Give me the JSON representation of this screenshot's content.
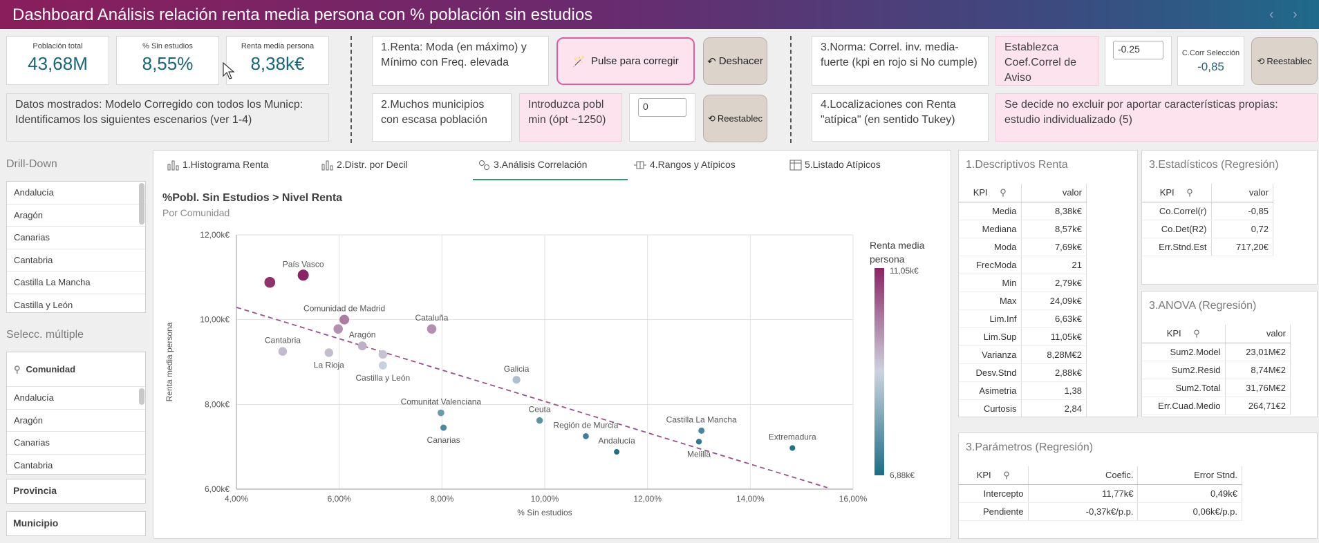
{
  "header": {
    "title": "Dashboard Análisis relación renta media persona con % población sin estudios",
    "prev": "‹",
    "next": "›"
  },
  "kpis": [
    {
      "label": "Población total",
      "value": "43,68M"
    },
    {
      "label": "% Sin estudios",
      "value": "8,55%"
    },
    {
      "label": "Renta media persona",
      "value": "8,38k€"
    }
  ],
  "info": "Datos mostrados: Modelo Corregido con  todos los Municp: Identificamos los siguientes escenarios (ver 1-4)",
  "scenario1": {
    "text": "1.Renta: Moda (en máximo) y Mínimo con Freq. elevada",
    "fix_label": "Pulse para corregir",
    "undo_label": "Deshacer"
  },
  "scenario2": {
    "text": "2.Muchos municipios con escasa población",
    "prompt": "Introduzca pobl min (ópt ~1250)",
    "value": "0",
    "reset_label": "Reestablec"
  },
  "scenario3": {
    "text": "3.Norma: Correl. inv. media-fuerte (kpi en rojo si No cumple)",
    "prompt": "Establezca Coef.Correl de Aviso",
    "value": "-0.25",
    "sel_label": "C.Corr Selección",
    "sel_value": "-0,85",
    "reset_label": "Reestablec"
  },
  "scenario4": {
    "text": "4.Localizaciones con Renta \"atípica\" (en sentido Tukey)",
    "decision": "Se decide no excluir por aportar características propias: estudio individualizado (5)"
  },
  "sidebar": {
    "drill_title": "Drill-Down",
    "drill_items": [
      "Andalucía",
      "Aragón",
      "Canarias",
      "Cantabria",
      "Castilla La Mancha",
      "Castilla y León"
    ],
    "multi_title": "Selecc. múltiple",
    "search_label": "Comunidad",
    "multi_items": [
      "Andalucía",
      "Aragón",
      "Canarias",
      "Cantabria"
    ],
    "field1": "Provincia",
    "field2": "Municipio"
  },
  "tabs": [
    "1.Histograma Renta",
    "2.Distr. por Decil",
    "3.Análisis Correlación",
    "4.Rangos y Atípicos",
    "5.Listado Atípicos"
  ],
  "chart_title": "%Pobl. Sin Estudios > Nivel Renta",
  "chart_subtitle": "Por Comunidad",
  "chart_data": {
    "type": "scatter",
    "title": "%Pobl. Sin Estudios > Nivel Renta",
    "subtitle": "Por Comunidad",
    "xlabel": "% Sin estudios",
    "ylabel": "Renta media persona",
    "xlim": [
      4,
      16
    ],
    "ylim": [
      6,
      12
    ],
    "xticks": [
      "4,00%",
      "6,00%",
      "8,00%",
      "10,00%",
      "12,00%",
      "14,00%",
      "16,00%"
    ],
    "yticks": [
      "6,00k€",
      "8,00k€",
      "10,00k€",
      "12,00k€"
    ],
    "legend_title": "Renta media persona",
    "legend_max": "11,05k€",
    "legend_min": "6,88k€",
    "color_scale": [
      "#1a6e86",
      "#cdd3e0",
      "#8b2464"
    ],
    "points": [
      {
        "label": "",
        "x": 4.65,
        "y": 10.88
      },
      {
        "label": "País Vasco",
        "x": 5.3,
        "y": 11.05
      },
      {
        "label": "Comunidad de Madrid",
        "x": 6.1,
        "y": 10.0
      },
      {
        "label": "",
        "x": 5.98,
        "y": 9.78
      },
      {
        "label": "Cataluña",
        "x": 7.8,
        "y": 9.78
      },
      {
        "label": "Aragón",
        "x": 6.45,
        "y": 9.38
      },
      {
        "label": "Cantabria",
        "x": 4.9,
        "y": 9.25
      },
      {
        "label": "La Rioja",
        "x": 5.8,
        "y": 9.22
      },
      {
        "label": "",
        "x": 6.85,
        "y": 9.18
      },
      {
        "label": "Castilla y León",
        "x": 6.85,
        "y": 8.92
      },
      {
        "label": "Galicia",
        "x": 9.45,
        "y": 8.58
      },
      {
        "label": "Comunitat Valenciana",
        "x": 7.98,
        "y": 7.8
      },
      {
        "label": "Ceuta",
        "x": 9.9,
        "y": 7.62
      },
      {
        "label": "Canarias",
        "x": 8.03,
        "y": 7.45
      },
      {
        "label": "Región de Murcia",
        "x": 10.8,
        "y": 7.25
      },
      {
        "label": "Andalucía",
        "x": 11.4,
        "y": 6.88
      },
      {
        "label": "Castilla La Mancha",
        "x": 13.05,
        "y": 7.38
      },
      {
        "label": "Melilla",
        "x": 13.0,
        "y": 7.12
      },
      {
        "label": "Extremadura",
        "x": 14.82,
        "y": 6.97
      }
    ],
    "trendline": {
      "intercept": 11.77,
      "slope": -0.37
    }
  },
  "desc_table": {
    "title": "1.Descriptivos Renta",
    "headers": [
      "KPI",
      "valor"
    ],
    "rows": [
      [
        "Media",
        "8,38k€"
      ],
      [
        "Mediana",
        "8,57k€"
      ],
      [
        "Moda",
        "7,69k€"
      ],
      [
        "FrecModa",
        "21"
      ],
      [
        "Min",
        "2,79k€"
      ],
      [
        "Max",
        "24,09k€"
      ],
      [
        "Lim.Inf",
        "6,63k€"
      ],
      [
        "Lim.Sup",
        "11,05k€"
      ],
      [
        "Varianza",
        "8,28M€2"
      ],
      [
        "Desv.Stnd",
        "2,88k€"
      ],
      [
        "Asimetria",
        "1,38"
      ],
      [
        "Curtosis",
        "2,84"
      ]
    ]
  },
  "stats_table": {
    "title": "3.Estadísticos (Regresión)",
    "headers": [
      "KPI",
      "valor"
    ],
    "rows": [
      [
        "Co.Correl(r)",
        "-0,85"
      ],
      [
        "Co.Det(R2)",
        "0,72"
      ],
      [
        "Err.Stnd.Est",
        "717,20€"
      ]
    ]
  },
  "anova_table": {
    "title": "3.ANOVA (Regresión)",
    "headers": [
      "KPI",
      "valor"
    ],
    "rows": [
      [
        "Sum2.Model",
        "23,01M€2"
      ],
      [
        "Sum2.Resid",
        "8,74M€2"
      ],
      [
        "Sum2.Total",
        "31,76M€2"
      ],
      [
        "Err.Cuad.Medio",
        "264,71€2"
      ]
    ]
  },
  "params_table": {
    "title": "3.Parámetros (Regresión)",
    "headers": [
      "KPI",
      "Coefic.",
      "Error Stnd."
    ],
    "rows": [
      [
        "Intercepto",
        "11,77k€",
        "0,49k€"
      ],
      [
        "Pendiente",
        "-0,37k€/p.p.",
        "0,06k€/p.p."
      ]
    ]
  }
}
